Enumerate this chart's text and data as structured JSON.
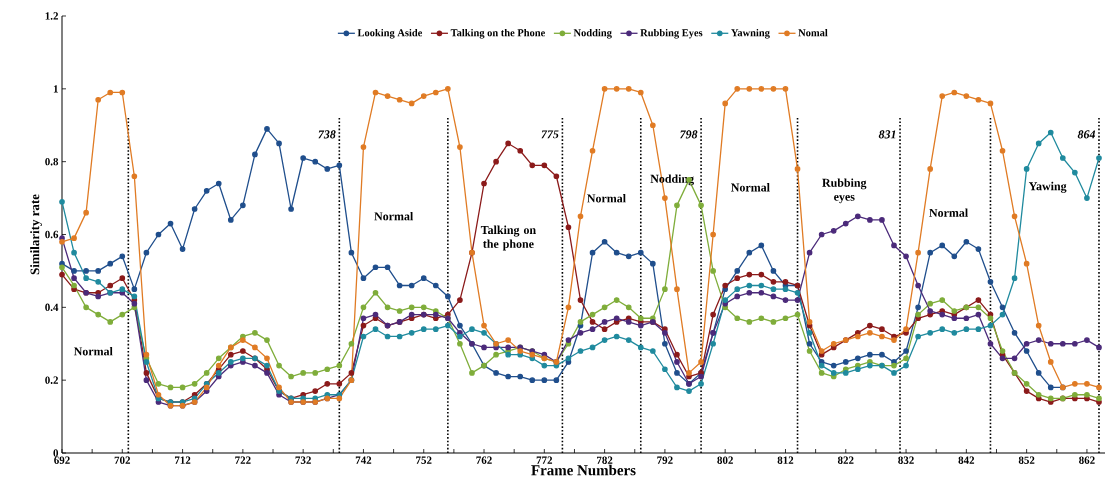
{
  "chart_data": {
    "type": "line",
    "xlabel": "Frame Numbers",
    "ylabel": "Similarity rate",
    "x": [
      692,
      694,
      696,
      698,
      700,
      702,
      704,
      706,
      708,
      710,
      712,
      714,
      716,
      718,
      720,
      722,
      724,
      726,
      728,
      730,
      732,
      734,
      736,
      738,
      740,
      742,
      744,
      746,
      748,
      750,
      752,
      754,
      756,
      758,
      760,
      762,
      764,
      766,
      768,
      770,
      772,
      774,
      776,
      778,
      780,
      782,
      784,
      786,
      788,
      790,
      792,
      794,
      796,
      798,
      800,
      802,
      804,
      806,
      808,
      810,
      812,
      814,
      816,
      818,
      820,
      822,
      824,
      826,
      828,
      830,
      832,
      834,
      836,
      838,
      840,
      842,
      844,
      846,
      848,
      850,
      852,
      854,
      856,
      858,
      860,
      862,
      864
    ],
    "series": [
      {
        "name": "Looking Aside",
        "color": "#1f4e8c",
        "values": [
          0.52,
          0.5,
          0.5,
          0.5,
          0.52,
          0.54,
          0.45,
          0.55,
          0.6,
          0.63,
          0.56,
          0.67,
          0.72,
          0.74,
          0.64,
          0.68,
          0.82,
          0.89,
          0.85,
          0.67,
          0.81,
          0.8,
          0.78,
          0.79,
          0.55,
          0.48,
          0.51,
          0.51,
          0.46,
          0.46,
          0.48,
          0.46,
          0.43,
          0.35,
          0.3,
          0.24,
          0.22,
          0.21,
          0.21,
          0.2,
          0.2,
          0.2,
          0.25,
          0.35,
          0.55,
          0.58,
          0.55,
          0.54,
          0.55,
          0.52,
          0.3,
          0.22,
          0.19,
          0.22,
          0.33,
          0.45,
          0.5,
          0.55,
          0.57,
          0.5,
          0.46,
          0.46,
          0.3,
          0.25,
          0.24,
          0.25,
          0.26,
          0.27,
          0.27,
          0.25,
          0.28,
          0.4,
          0.55,
          0.57,
          0.54,
          0.58,
          0.56,
          0.47,
          0.4,
          0.33,
          0.28,
          0.22,
          0.18,
          0.18,
          null,
          null,
          null
        ]
      },
      {
        "name": "Talking on the Phone",
        "color": "#8b1a1a",
        "values": [
          0.49,
          0.45,
          0.44,
          0.44,
          0.46,
          0.48,
          0.42,
          0.22,
          0.15,
          0.14,
          0.14,
          0.16,
          0.19,
          0.23,
          0.27,
          0.28,
          0.26,
          0.23,
          0.17,
          0.15,
          0.16,
          0.17,
          0.19,
          0.19,
          0.22,
          0.35,
          0.37,
          0.35,
          0.36,
          0.37,
          0.38,
          0.37,
          0.38,
          0.42,
          0.55,
          0.74,
          0.8,
          0.85,
          0.83,
          0.79,
          0.79,
          0.76,
          0.62,
          0.42,
          0.36,
          0.34,
          0.36,
          0.37,
          0.36,
          0.36,
          0.34,
          0.27,
          0.21,
          0.22,
          0.38,
          0.46,
          0.48,
          0.49,
          0.49,
          0.47,
          0.47,
          0.46,
          0.35,
          0.27,
          0.29,
          0.31,
          0.33,
          0.35,
          0.34,
          0.32,
          0.33,
          0.37,
          0.38,
          0.39,
          0.38,
          0.4,
          0.42,
          0.38,
          0.27,
          0.22,
          0.17,
          0.15,
          0.14,
          0.15,
          0.15,
          0.15,
          0.14
        ]
      },
      {
        "name": "Nodding",
        "color": "#7fad3a",
        "values": [
          0.51,
          0.46,
          0.4,
          0.38,
          0.36,
          0.38,
          0.4,
          0.26,
          0.19,
          0.18,
          0.18,
          0.19,
          0.22,
          0.26,
          0.29,
          0.32,
          0.33,
          0.31,
          0.24,
          0.21,
          0.22,
          0.22,
          0.23,
          0.24,
          0.3,
          0.4,
          0.44,
          0.4,
          0.39,
          0.4,
          0.4,
          0.39,
          0.37,
          0.3,
          0.22,
          0.24,
          0.27,
          0.28,
          0.29,
          0.28,
          0.26,
          0.25,
          0.3,
          0.36,
          0.38,
          0.4,
          0.42,
          0.4,
          0.37,
          0.37,
          0.45,
          0.68,
          0.75,
          0.68,
          0.5,
          0.4,
          0.37,
          0.36,
          0.37,
          0.36,
          0.37,
          0.38,
          0.28,
          0.22,
          0.21,
          0.23,
          0.24,
          0.25,
          0.24,
          0.24,
          0.26,
          0.38,
          0.41,
          0.42,
          0.39,
          0.4,
          0.4,
          0.37,
          0.28,
          0.22,
          0.19,
          0.16,
          0.15,
          0.15,
          0.16,
          0.16,
          0.15
        ]
      },
      {
        "name": "Rubbing Eyes",
        "color": "#4b2a7a",
        "values": [
          0.59,
          0.48,
          0.44,
          0.43,
          0.44,
          0.44,
          0.41,
          0.2,
          0.14,
          0.13,
          0.13,
          0.14,
          0.17,
          0.21,
          0.24,
          0.25,
          0.24,
          0.22,
          0.16,
          0.14,
          0.14,
          0.14,
          0.15,
          0.16,
          0.2,
          0.37,
          0.38,
          0.35,
          0.36,
          0.38,
          0.38,
          0.38,
          0.37,
          0.33,
          0.3,
          0.29,
          0.29,
          0.29,
          0.29,
          0.28,
          0.27,
          0.25,
          0.31,
          0.33,
          0.34,
          0.36,
          0.37,
          0.36,
          0.35,
          0.36,
          0.33,
          0.25,
          0.19,
          0.21,
          0.33,
          0.41,
          0.43,
          0.44,
          0.44,
          0.43,
          0.42,
          0.42,
          0.55,
          0.6,
          0.61,
          0.63,
          0.65,
          0.64,
          0.64,
          0.57,
          0.54,
          0.46,
          0.39,
          0.38,
          0.37,
          0.37,
          0.38,
          0.3,
          0.26,
          0.26,
          0.3,
          0.31,
          0.3,
          0.3,
          0.3,
          0.31,
          0.29
        ]
      },
      {
        "name": "Yawning",
        "color": "#1f8a9e",
        "values": [
          0.69,
          0.55,
          0.48,
          0.47,
          0.44,
          0.45,
          0.43,
          0.25,
          0.15,
          0.14,
          0.14,
          0.15,
          0.19,
          0.22,
          0.25,
          0.26,
          0.26,
          0.24,
          0.17,
          0.15,
          0.15,
          0.15,
          0.16,
          0.16,
          0.2,
          0.32,
          0.34,
          0.32,
          0.32,
          0.33,
          0.34,
          0.34,
          0.35,
          0.32,
          0.34,
          0.33,
          0.3,
          0.27,
          0.27,
          0.26,
          0.24,
          0.24,
          0.26,
          0.28,
          0.29,
          0.31,
          0.32,
          0.31,
          0.29,
          0.28,
          0.23,
          0.18,
          0.17,
          0.19,
          0.3,
          0.42,
          0.45,
          0.46,
          0.46,
          0.45,
          0.45,
          0.44,
          0.33,
          0.24,
          0.22,
          0.22,
          0.23,
          0.24,
          0.24,
          0.22,
          0.24,
          0.32,
          0.33,
          0.34,
          0.33,
          0.34,
          0.34,
          0.35,
          0.38,
          0.48,
          0.78,
          0.85,
          0.88,
          0.81,
          0.77,
          0.7,
          0.81
        ]
      },
      {
        "name": "Nomal",
        "color": "#e07b24",
        "values": [
          0.58,
          0.59,
          0.66,
          0.97,
          0.99,
          0.99,
          0.76,
          0.27,
          0.16,
          0.13,
          0.13,
          0.14,
          0.18,
          0.24,
          0.29,
          0.31,
          0.29,
          0.26,
          0.18,
          0.14,
          0.14,
          0.14,
          0.15,
          0.15,
          0.2,
          0.84,
          0.99,
          0.98,
          0.97,
          0.96,
          0.98,
          0.99,
          1.0,
          0.84,
          0.55,
          0.35,
          0.3,
          0.31,
          0.28,
          0.27,
          0.26,
          0.25,
          0.4,
          0.65,
          0.83,
          1.0,
          1.0,
          1.0,
          0.99,
          0.9,
          0.7,
          0.45,
          0.22,
          0.25,
          0.6,
          0.96,
          1.0,
          1.0,
          1.0,
          1.0,
          1.0,
          0.78,
          0.36,
          0.28,
          0.3,
          0.31,
          0.32,
          0.33,
          0.32,
          0.31,
          0.34,
          0.55,
          0.78,
          0.98,
          0.99,
          0.98,
          0.97,
          0.96,
          0.83,
          0.65,
          0.52,
          0.35,
          0.25,
          0.18,
          0.19,
          0.19,
          0.18
        ]
      }
    ],
    "xlim": [
      692,
      865
    ],
    "xticks": [
      692,
      {
        "value": 697,
        "label": null
      },
      702,
      {
        "value": 707,
        "label": null
      },
      712,
      {
        "value": 717,
        "label": null
      },
      722,
      {
        "value": 727,
        "label": null
      },
      732,
      {
        "value": 737,
        "label": null
      },
      742,
      {
        "value": 747,
        "label": null
      },
      752,
      {
        "value": 757,
        "label": null
      },
      762,
      {
        "value": 767,
        "label": null
      },
      772,
      {
        "value": 777,
        "label": null
      },
      782,
      {
        "value": 787,
        "label": null
      },
      792,
      {
        "value": 797,
        "label": null
      },
      802,
      {
        "value": 807,
        "label": null
      },
      812,
      {
        "value": 817,
        "label": null
      },
      822,
      {
        "value": 827,
        "label": null
      },
      832,
      {
        "value": 837,
        "label": null
      },
      842,
      {
        "value": 847,
        "label": null
      },
      852,
      {
        "value": 857,
        "label": null
      },
      862
    ],
    "ylim": [
      0,
      1.2
    ],
    "yticks": [
      0,
      0.2,
      0.4,
      0.6,
      0.8,
      1,
      1.2
    ],
    "legend": "top",
    "marker": "circle",
    "line_style": "solid",
    "ref_lines": [
      {
        "axis": "x",
        "value": 703,
        "label": null
      },
      {
        "axis": "x",
        "value": 738,
        "label": "738"
      },
      {
        "axis": "x",
        "value": 756,
        "label": null
      },
      {
        "axis": "x",
        "value": 775,
        "label": "775"
      },
      {
        "axis": "x",
        "value": 788,
        "label": null
      },
      {
        "axis": "x",
        "value": 798,
        "label": "798"
      },
      {
        "axis": "x",
        "value": 814,
        "label": null
      },
      {
        "axis": "x",
        "value": 831,
        "label": "831"
      },
      {
        "axis": "x",
        "value": 846,
        "label": null
      },
      {
        "axis": "x",
        "value": 864,
        "label": "864"
      }
    ],
    "annotations": [
      "Normal",
      "Normal",
      "Talking on the phone",
      "Normal",
      "Nodding",
      "Normal",
      "Rubbing eyes",
      "Normal",
      "Yawing"
    ]
  }
}
